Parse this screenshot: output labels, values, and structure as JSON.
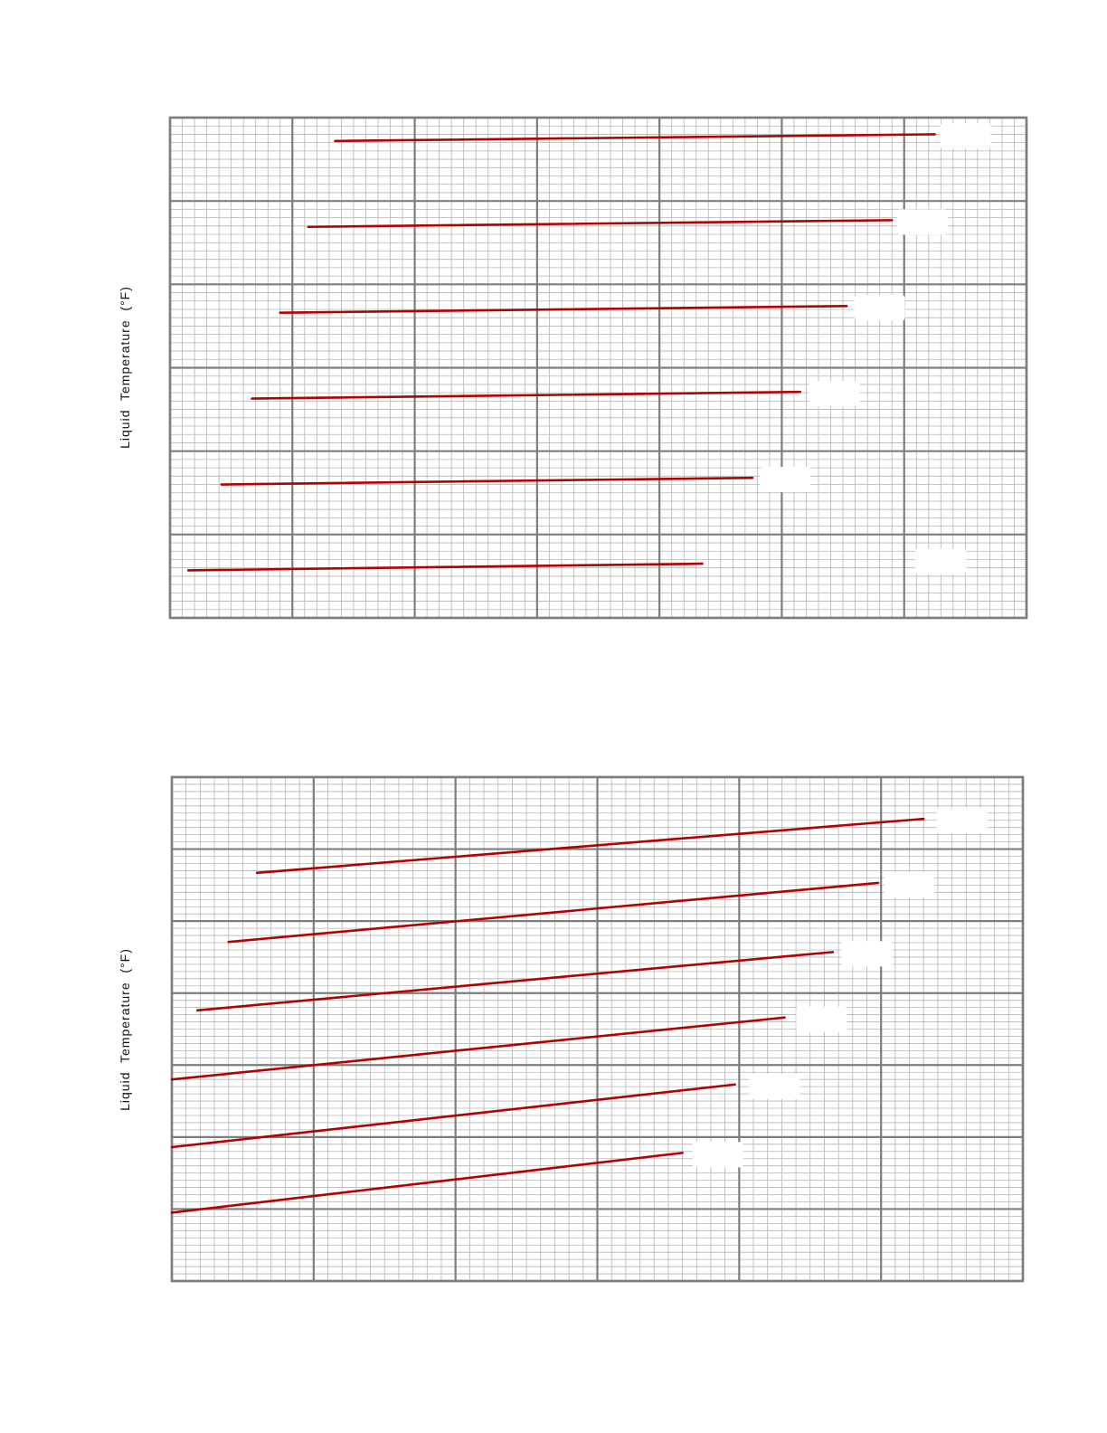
{
  "chart_data": [
    {
      "type": "line",
      "title": "",
      "xlabel": "",
      "ylabel": "Liquid  Temperature  (°F)",
      "xlim": [
        0,
        7
      ],
      "ylim": [
        0,
        6
      ],
      "grid": true,
      "grid_minor_per_major": 10,
      "line_color": "#b30000",
      "series": [
        {
          "x": [
            1.35,
            6.25
          ],
          "y": [
            5.72,
            5.8
          ]
        },
        {
          "x": [
            1.13,
            5.9
          ],
          "y": [
            4.69,
            4.77
          ]
        },
        {
          "x": [
            0.9,
            5.53
          ],
          "y": [
            3.66,
            3.74
          ]
        },
        {
          "x": [
            0.67,
            5.15
          ],
          "y": [
            2.63,
            2.71
          ]
        },
        {
          "x": [
            0.42,
            4.76
          ],
          "y": [
            1.6,
            1.68
          ]
        },
        {
          "x": [
            0.15,
            4.35
          ],
          "y": [
            0.57,
            0.65
          ]
        }
      ],
      "label_boxes": [
        {
          "x": 6.5,
          "y": 5.8
        },
        {
          "x": 6.15,
          "y": 4.77
        },
        {
          "x": 5.8,
          "y": 3.74
        },
        {
          "x": 5.43,
          "y": 2.71
        },
        {
          "x": 5.03,
          "y": 1.68
        },
        {
          "x": 6.3,
          "y": 0.7
        }
      ]
    },
    {
      "type": "line",
      "title": "",
      "xlabel": "",
      "ylabel": "Liquid  Temperature  (°F)",
      "xlim": [
        0,
        6
      ],
      "ylim": [
        0,
        7
      ],
      "grid": true,
      "grid_minor_per_major": 10,
      "line_color": "#b30000",
      "series": [
        {
          "x": [
            0.6,
            5.3
          ],
          "y": [
            5.67,
            6.42
          ]
        },
        {
          "x": [
            0.4,
            4.98
          ],
          "y": [
            4.71,
            5.53
          ]
        },
        {
          "x": [
            0.18,
            4.66
          ],
          "y": [
            3.76,
            4.57
          ]
        },
        {
          "x": [
            0.0,
            4.32
          ],
          "y": [
            2.8,
            3.66
          ]
        },
        {
          "x": [
            0.0,
            3.97
          ],
          "y": [
            1.86,
            2.73
          ]
        },
        {
          "x": [
            0.0,
            3.6
          ],
          "y": [
            0.95,
            1.78
          ]
        }
      ],
      "label_boxes": [
        {
          "x": 5.57,
          "y": 6.42
        },
        {
          "x": 5.2,
          "y": 5.53
        },
        {
          "x": 4.9,
          "y": 4.57
        },
        {
          "x": 4.58,
          "y": 3.66
        },
        {
          "x": 4.25,
          "y": 2.73
        },
        {
          "x": 3.85,
          "y": 1.78
        }
      ]
    }
  ]
}
